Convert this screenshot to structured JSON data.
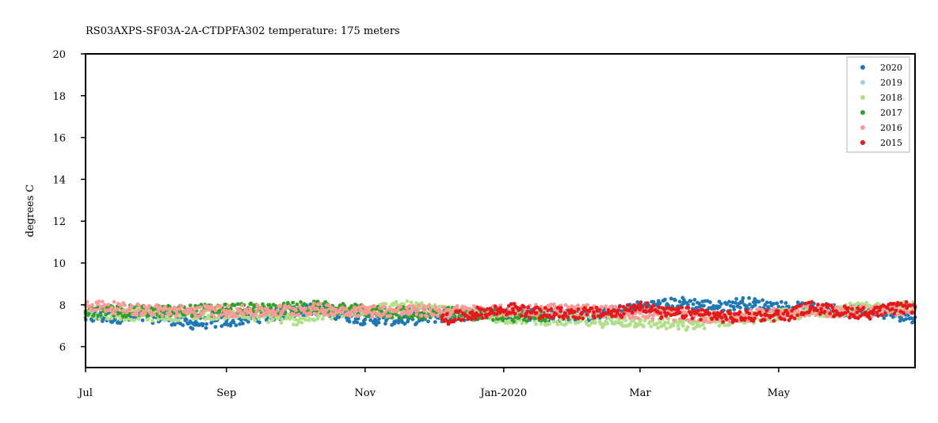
{
  "chart_data": {
    "type": "scatter",
    "title": "RS03AXPS-SF03A-2A-CTDPFA302 temperature: 175 meters",
    "xlabel": "",
    "ylabel": "degrees C",
    "xlim": [
      "2019-07-01",
      "2020-06-30"
    ],
    "ylim": [
      5,
      20
    ],
    "yticks": [
      6,
      8,
      10,
      12,
      14,
      16,
      18,
      20
    ],
    "xticks": [
      {
        "date": "2019-07-01",
        "label": "Jul"
      },
      {
        "date": "2019-09-01",
        "label": "Sep"
      },
      {
        "date": "2019-11-01",
        "label": "Nov"
      },
      {
        "date": "2020-01-01",
        "label": "Jan-2020"
      },
      {
        "date": "2020-03-01",
        "label": "Mar"
      },
      {
        "date": "2020-05-01",
        "label": "May"
      }
    ],
    "grid": false,
    "legend_position": "top-right",
    "series": [
      {
        "name": "2020",
        "color": "#1f78b4",
        "points": [
          [
            "2019-07-01",
            7.4
          ],
          [
            "2019-07-20",
            7.4
          ],
          [
            "2019-08-05",
            7.4
          ],
          [
            "2019-08-15",
            7.1
          ],
          [
            "2019-09-01",
            7.2
          ],
          [
            "2019-09-20",
            7.5
          ],
          [
            "2019-10-10",
            7.8
          ],
          [
            "2019-11-01",
            7.3
          ],
          [
            "2019-11-20",
            7.3
          ],
          [
            "2019-12-10",
            7.5
          ],
          [
            "2020-01-01",
            7.6
          ],
          [
            "2020-01-20",
            7.5
          ],
          [
            "2020-02-10",
            7.5
          ],
          [
            "2020-03-01",
            7.9
          ],
          [
            "2020-03-20",
            8.1
          ],
          [
            "2020-04-05",
            7.9
          ],
          [
            "2020-04-15",
            8.1
          ],
          [
            "2020-05-01",
            7.9
          ],
          [
            "2020-05-20",
            7.8
          ],
          [
            "2020-06-10",
            7.7
          ],
          [
            "2020-06-30",
            7.4
          ]
        ]
      },
      {
        "name": "2019",
        "color": "#a6cee3",
        "points": []
      },
      {
        "name": "2018",
        "color": "#b2df8a",
        "points": [
          [
            "2019-07-01",
            7.6
          ],
          [
            "2019-08-01",
            7.5
          ],
          [
            "2019-09-01",
            7.6
          ],
          [
            "2019-10-01",
            7.3
          ],
          [
            "2019-11-01",
            7.8
          ],
          [
            "2019-11-20",
            7.9
          ],
          [
            "2019-12-10",
            7.6
          ],
          [
            "2020-01-01",
            7.4
          ],
          [
            "2020-01-20",
            7.3
          ],
          [
            "2020-02-10",
            7.2
          ],
          [
            "2020-03-01",
            7.2
          ],
          [
            "2020-03-20",
            7.0
          ],
          [
            "2020-04-10",
            7.3
          ],
          [
            "2020-05-01",
            7.5
          ],
          [
            "2020-06-01",
            7.8
          ],
          [
            "2020-06-30",
            7.9
          ]
        ]
      },
      {
        "name": "2017",
        "color": "#33a02c",
        "points": [
          [
            "2019-07-01",
            7.7
          ],
          [
            "2019-07-20",
            7.7
          ],
          [
            "2019-08-10",
            7.7
          ],
          [
            "2019-09-01",
            7.8
          ],
          [
            "2019-09-20",
            7.8
          ],
          [
            "2019-10-10",
            7.9
          ],
          [
            "2019-11-01",
            7.7
          ],
          [
            "2019-11-20",
            7.6
          ],
          [
            "2019-12-10",
            7.6
          ],
          [
            "2020-01-01",
            7.5
          ],
          [
            "2020-01-20",
            7.4
          ]
        ]
      },
      {
        "name": "2016",
        "color": "#fb9a99",
        "points": [
          [
            "2019-07-01",
            8.0
          ],
          [
            "2019-07-20",
            7.8
          ],
          [
            "2019-08-10",
            7.7
          ],
          [
            "2019-09-01",
            7.7
          ],
          [
            "2019-09-20",
            7.7
          ],
          [
            "2019-10-10",
            7.8
          ],
          [
            "2019-11-01",
            7.7
          ],
          [
            "2019-11-20",
            7.7
          ],
          [
            "2019-12-10",
            7.7
          ],
          [
            "2020-01-01",
            7.7
          ],
          [
            "2020-01-20",
            7.8
          ],
          [
            "2020-02-10",
            7.7
          ],
          [
            "2020-03-01",
            7.6
          ],
          [
            "2020-03-20",
            7.5
          ],
          [
            "2020-04-10",
            7.4
          ],
          [
            "2020-05-01",
            7.6
          ],
          [
            "2020-05-20",
            7.7
          ],
          [
            "2020-06-10",
            7.7
          ],
          [
            "2020-06-30",
            7.8
          ]
        ]
      },
      {
        "name": "2015",
        "color": "#e31a1c",
        "points": [
          [
            "2019-12-05",
            7.3
          ],
          [
            "2019-12-20",
            7.6
          ],
          [
            "2020-01-05",
            7.8
          ],
          [
            "2020-01-15",
            7.6
          ],
          [
            "2020-01-28",
            7.6
          ],
          [
            "2020-02-20",
            7.6
          ],
          [
            "2020-03-01",
            8.0
          ],
          [
            "2020-03-10",
            7.6
          ],
          [
            "2020-03-25",
            7.6
          ],
          [
            "2020-04-10",
            7.4
          ],
          [
            "2020-04-25",
            7.5
          ],
          [
            "2020-05-05",
            7.5
          ],
          [
            "2020-05-15",
            7.9
          ],
          [
            "2020-05-25",
            7.7
          ],
          [
            "2020-06-10",
            7.6
          ],
          [
            "2020-06-20",
            7.8
          ],
          [
            "2020-06-30",
            7.9
          ]
        ]
      }
    ]
  }
}
